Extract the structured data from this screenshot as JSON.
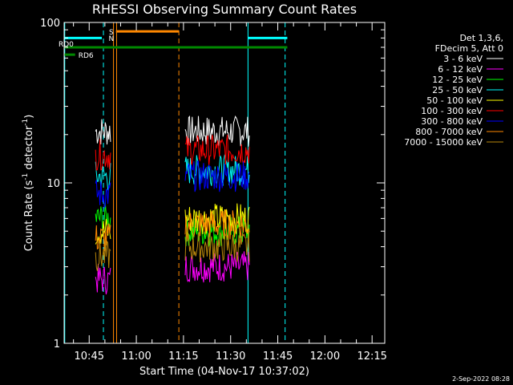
{
  "chart_data": {
    "type": "line",
    "title": "RHESSI Observing Summary Count Rates",
    "xlabel": "Start Time (04-Nov-17 10:37:02)",
    "ylabel_main": "Count Rate (s",
    "ylabel_sup1": "-1",
    "ylabel_mid": " detector",
    "ylabel_sup2": "-1",
    "ylabel_end": ")",
    "yscale": "log",
    "ylim": [
      1,
      100
    ],
    "xlim_minutes": [
      0,
      102
    ],
    "y_tick_labels": [
      {
        "value": 1,
        "label": "1"
      },
      {
        "value": 10,
        "label": "10"
      },
      {
        "value": 100,
        "label": "100"
      }
    ],
    "x_tick_labels": [
      {
        "minute": 7.97,
        "label": "10:45"
      },
      {
        "minute": 22.97,
        "label": "11:00"
      },
      {
        "minute": 37.97,
        "label": "11:15"
      },
      {
        "minute": 52.97,
        "label": "11:30"
      },
      {
        "minute": 67.97,
        "label": "11:45"
      },
      {
        "minute": 82.97,
        "label": "12:00"
      },
      {
        "minute": 97.97,
        "label": "12:15"
      }
    ],
    "legend_header": [
      "Det 1,3,6,",
      "FDecim 5, Att 0"
    ],
    "legend_position": "right",
    "series": [
      {
        "name": "3 - 6 keV",
        "color": "#ffffff",
        "values": [
          21,
          21
        ]
      },
      {
        "name": "6 - 12 keV",
        "color": "#ff00ff",
        "values": [
          2.5,
          3.0
        ]
      },
      {
        "name": "12 - 25 keV",
        "color": "#00ff00",
        "values": [
          6.0,
          5.0
        ]
      },
      {
        "name": "25 - 50 keV",
        "color": "#00ffff",
        "values": [
          11,
          12
        ]
      },
      {
        "name": "50 - 100 keV",
        "color": "#ffff00",
        "values": [
          5.0,
          6.0
        ]
      },
      {
        "name": "100 - 300 keV",
        "color": "#ff0000",
        "values": [
          15,
          16
        ]
      },
      {
        "name": "300 - 800 keV",
        "color": "#0000ff",
        "values": [
          8.5,
          11
        ]
      },
      {
        "name": "800 - 7000 keV",
        "color": "#ff8800",
        "values": [
          4.5,
          5.5
        ]
      },
      {
        "name": "7000 - 15000 keV",
        "color": "#b8860b",
        "values": [
          3.5,
          4.0
        ]
      }
    ],
    "data_intervals_minutes": [
      [
        10,
        15
      ],
      [
        38.5,
        59
      ]
    ],
    "flag_bars": [
      {
        "label": "",
        "color": "#00ffff",
        "y": 80,
        "x0": 0,
        "x1": 12
      },
      {
        "label": "",
        "color": "#00ffff",
        "y": 80,
        "x0": 58.5,
        "x1": 71
      },
      {
        "label": "",
        "color": "#ff8800",
        "y": 88,
        "x0": 16.5,
        "x1": 36.5
      },
      {
        "label": "RD0",
        "color": "#008800",
        "y": 70,
        "x0": 0,
        "x1": 71
      },
      {
        "label": "RD6",
        "color": "#008800",
        "y": 63,
        "x0": 0,
        "x1": 3.5
      }
    ],
    "flag_letters": [
      {
        "label": "S",
        "color": "#ff8800",
        "minute": 14.5
      },
      {
        "label": "N",
        "color": "#00ffff",
        "minute": 14.5
      }
    ],
    "vertical_lines": [
      {
        "minute": 0.2,
        "color": "#00ffff",
        "style": "solid"
      },
      {
        "minute": 12.5,
        "color": "#00ffff",
        "style": "dashed"
      },
      {
        "minute": 15.7,
        "color": "#ff8800",
        "style": "solid"
      },
      {
        "minute": 16.7,
        "color": "#ff8800",
        "style": "solid"
      },
      {
        "minute": 36.5,
        "color": "#ff8800",
        "style": "dashed"
      },
      {
        "minute": 58.5,
        "color": "#00ffff",
        "style": "solid"
      },
      {
        "minute": 70.3,
        "color": "#00ffff",
        "style": "dashed"
      }
    ]
  },
  "footer_timestamp": "2-Sep-2022 08:28"
}
